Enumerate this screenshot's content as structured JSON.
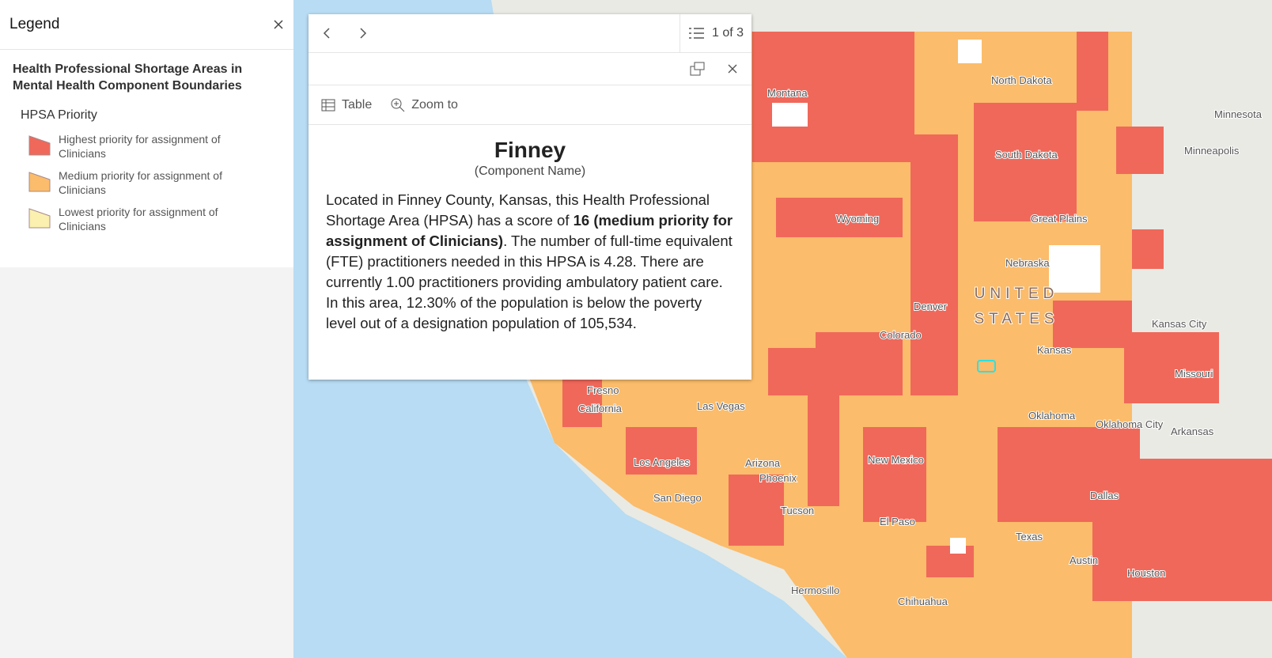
{
  "legend": {
    "title": "Legend",
    "layer_title": "Health Professional Shortage Areas in Mental Health Component Boundaries",
    "field": "HPSA Priority",
    "items": [
      {
        "label": "Highest priority for assignment of Clinicians",
        "color": "#f0685a"
      },
      {
        "label": "Medium priority for assignment of Clinicians",
        "color": "#fbbc6b"
      },
      {
        "label": "Lowest priority for assignment of Clinicians",
        "color": "#fbf0b0"
      }
    ]
  },
  "popup": {
    "counter": "1 of 3",
    "actions": [
      "Table",
      "Zoom to"
    ],
    "title": "Finney",
    "subtitle": "(Component Name)",
    "body": [
      "Located in Finney County, Kansas, this Health Professional Shortage Area (HPSA) has a score of ",
      "16 (medium priority for assignment of Clinicians)",
      ". The number of full-time equivalent (FTE) practitioners needed in this HPSA is 4.28. There are currently 1.00 practitioners providing ambulatory patient care. In this area, 12.30% of the population is below the poverty level out of a designation population of 105,534."
    ]
  },
  "map": {
    "labels": [
      "Montana",
      "North Dakota",
      "Minnesota",
      "South Dakota",
      "Minneapolis",
      "Wyoming",
      "Great Plains",
      "Nebraska",
      "Denver",
      "UNITED",
      "STATES",
      "Kansas City",
      "Colorado",
      "Kansas",
      "Missouri",
      "Fresno",
      "Las Vegas",
      "California",
      "Oklahoma",
      "Oklahoma City",
      "Arkansas",
      "Los Angeles",
      "New Mexico",
      "Arizona",
      "Phoenix",
      "San Diego",
      "Dallas",
      "Tucson",
      "El Paso",
      "Texas",
      "Austin",
      "Houston",
      "Hermosillo",
      "Chihuahua"
    ]
  }
}
